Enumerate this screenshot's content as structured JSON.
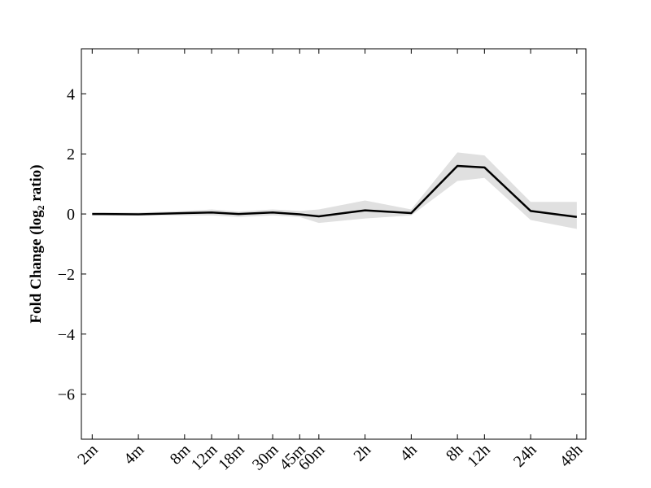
{
  "chart_data": {
    "type": "line",
    "y_label": "Fold Change (log₂ ratio)",
    "x": [
      2,
      4,
      8,
      12,
      18,
      30,
      45,
      60,
      120,
      240,
      480,
      720,
      1440,
      2880
    ],
    "values": [
      0,
      -0.01,
      0.03,
      0.05,
      0,
      0.05,
      -0.01,
      -0.08,
      0.12,
      0.03,
      1.6,
      1.55,
      0.1,
      -0.1
    ],
    "band_upper": [
      0.05,
      0.05,
      0.1,
      0.15,
      0.08,
      0.15,
      0.1,
      0.15,
      0.45,
      0.15,
      2.05,
      1.95,
      0.4,
      0.4
    ],
    "band_lower": [
      -0.05,
      -0.05,
      -0.05,
      -0.05,
      -0.1,
      -0.05,
      -0.1,
      -0.3,
      -0.15,
      -0.05,
      1.1,
      1.2,
      -0.2,
      -0.5
    ],
    "color": "#000000",
    "band_color": "#e0e0e0",
    "xlog": 2,
    "xlim": [
      1.7,
      3300
    ],
    "xticks": [
      {
        "value": 2,
        "label": "2m"
      },
      {
        "value": 4,
        "label": "4m"
      },
      {
        "value": 8,
        "label": "8m"
      },
      {
        "value": 12,
        "label": "12m"
      },
      {
        "value": 18,
        "label": "18m"
      },
      {
        "value": 30,
        "label": "30m"
      },
      {
        "value": 45,
        "label": "45m"
      },
      {
        "value": 60,
        "label": "60m"
      },
      {
        "value": 120,
        "label": "2h"
      },
      {
        "value": 240,
        "label": "4h"
      },
      {
        "value": 480,
        "label": "8h"
      },
      {
        "value": 720,
        "label": "12h"
      },
      {
        "value": 1440,
        "label": "24h"
      },
      {
        "value": 2880,
        "label": "48h"
      }
    ],
    "ylim": [
      -7.5,
      5.5
    ],
    "yticks": [
      {
        "value": -6,
        "label": "−6"
      },
      {
        "value": -4,
        "label": "−4"
      },
      {
        "value": -2,
        "label": "−2"
      },
      0,
      2,
      4
    ]
  }
}
